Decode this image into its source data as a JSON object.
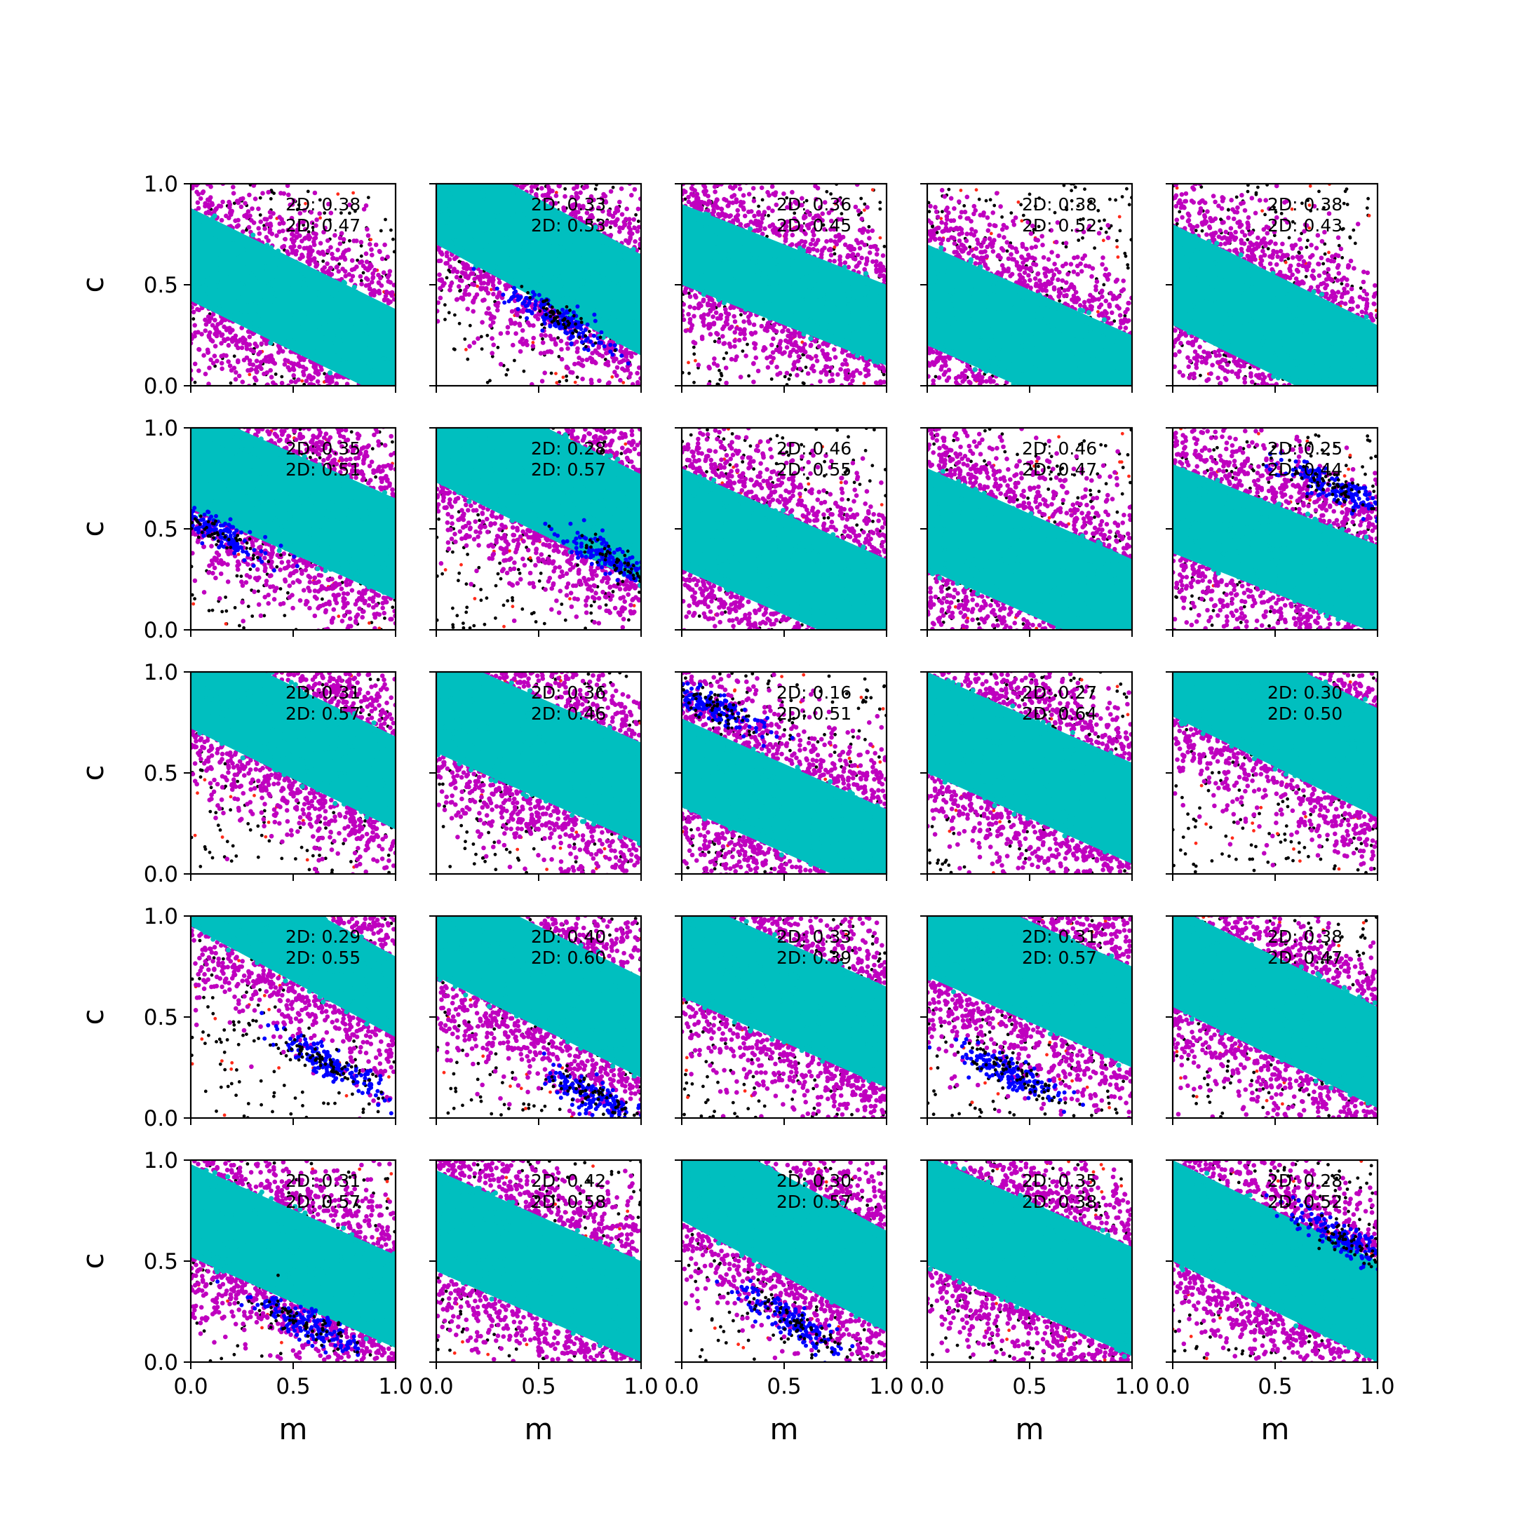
{
  "chart_data": {
    "type": "scatter",
    "layout": {
      "rows": 5,
      "cols": 5
    },
    "xlabel": "m",
    "ylabel": "c",
    "xlim": [
      0.0,
      1.0
    ],
    "ylim": [
      0.0,
      1.0
    ],
    "xticks": [
      "0.0",
      "0.5",
      "1.0"
    ],
    "yticks": [
      "0.0",
      "0.5",
      "1.0"
    ],
    "grid": false,
    "colors": {
      "cyan": "#00bfbf",
      "magenta": "#bf00bf",
      "blue": "#0000ff",
      "black": "#000000",
      "red": "#ff2a1a"
    },
    "panels": [
      {
        "row": 0,
        "col": 0,
        "annotations": [
          "2D: 0.38",
          "2D: 0.47"
        ],
        "band_slope": -0.5,
        "band_intercept": 0.65,
        "band_halfwidth": 0.23,
        "blue_cluster": null
      },
      {
        "row": 0,
        "col": 1,
        "annotations": [
          "2D: 0.33",
          "2D: 0.53"
        ],
        "band_slope": -0.55,
        "band_intercept": 0.95,
        "band_halfwidth": 0.25,
        "blue_cluster": [
          0.6,
          0.33
        ]
      },
      {
        "row": 0,
        "col": 2,
        "annotations": [
          "2D: 0.36",
          "2D: 0.45"
        ],
        "band_slope": -0.4,
        "band_intercept": 0.7,
        "band_halfwidth": 0.2,
        "blue_cluster": null
      },
      {
        "row": 0,
        "col": 3,
        "annotations": [
          "2D: 0.38",
          "2D: 0.52"
        ],
        "band_slope": -0.45,
        "band_intercept": 0.45,
        "band_halfwidth": 0.25,
        "blue_cluster": null
      },
      {
        "row": 0,
        "col": 4,
        "annotations": [
          "2D: 0.38",
          "2D: 0.43"
        ],
        "band_slope": -0.5,
        "band_intercept": 0.55,
        "band_halfwidth": 0.25,
        "blue_cluster": null
      },
      {
        "row": 1,
        "col": 0,
        "annotations": [
          "2D: 0.35",
          "2D: 0.51"
        ],
        "band_slope": -0.45,
        "band_intercept": 0.85,
        "band_halfwidth": 0.25,
        "blue_cluster": [
          0.1,
          0.5
        ]
      },
      {
        "row": 1,
        "col": 1,
        "annotations": [
          "2D: 0.28",
          "2D: 0.57"
        ],
        "band_slope": -0.5,
        "band_intercept": 1.0,
        "band_halfwidth": 0.27,
        "blue_cluster": [
          0.85,
          0.35
        ]
      },
      {
        "row": 1,
        "col": 2,
        "annotations": [
          "2D: 0.46",
          "2D: 0.55"
        ],
        "band_slope": -0.45,
        "band_intercept": 0.55,
        "band_halfwidth": 0.25,
        "blue_cluster": null
      },
      {
        "row": 1,
        "col": 3,
        "annotations": [
          "2D: 0.46",
          "2D: 0.47"
        ],
        "band_slope": -0.45,
        "band_intercept": 0.55,
        "band_halfwidth": 0.25,
        "blue_cluster": null
      },
      {
        "row": 1,
        "col": 4,
        "annotations": [
          "2D: 0.25",
          "2D: 0.44"
        ],
        "band_slope": -0.4,
        "band_intercept": 0.6,
        "band_halfwidth": 0.22,
        "blue_cluster": [
          0.8,
          0.7
        ]
      },
      {
        "row": 2,
        "col": 0,
        "annotations": [
          "2D: 0.31",
          "2D: 0.57"
        ],
        "band_slope": -0.5,
        "band_intercept": 0.95,
        "band_halfwidth": 0.23,
        "blue_cluster": null
      },
      {
        "row": 2,
        "col": 1,
        "annotations": [
          "2D: 0.36",
          "2D: 0.46"
        ],
        "band_slope": -0.45,
        "band_intercept": 0.85,
        "band_halfwidth": 0.25,
        "blue_cluster": null
      },
      {
        "row": 2,
        "col": 2,
        "annotations": [
          "2D: 0.16",
          "2D: 0.51"
        ],
        "band_slope": -0.45,
        "band_intercept": 0.55,
        "band_halfwidth": 0.22,
        "blue_cluster": [
          0.15,
          0.83
        ]
      },
      {
        "row": 2,
        "col": 3,
        "annotations": [
          "2D: 0.27",
          "2D: 0.64"
        ],
        "band_slope": -0.45,
        "band_intercept": 0.75,
        "band_halfwidth": 0.25,
        "blue_cluster": null
      },
      {
        "row": 2,
        "col": 4,
        "annotations": [
          "2D: 0.30",
          "2D: 0.50"
        ],
        "band_slope": -0.5,
        "band_intercept": 1.05,
        "band_halfwidth": 0.27,
        "blue_cluster": null
      },
      {
        "row": 3,
        "col": 0,
        "annotations": [
          "2D: 0.29",
          "2D: 0.55"
        ],
        "band_slope": -0.55,
        "band_intercept": 1.15,
        "band_halfwidth": 0.2,
        "blue_cluster": [
          0.65,
          0.28
        ]
      },
      {
        "row": 3,
        "col": 1,
        "annotations": [
          "2D: 0.40",
          "2D: 0.60"
        ],
        "band_slope": -0.5,
        "band_intercept": 0.95,
        "band_halfwidth": 0.25,
        "blue_cluster": [
          0.78,
          0.1
        ]
      },
      {
        "row": 3,
        "col": 2,
        "annotations": [
          "2D: 0.33",
          "2D: 0.39"
        ],
        "band_slope": -0.45,
        "band_intercept": 0.85,
        "band_halfwidth": 0.25,
        "blue_cluster": null
      },
      {
        "row": 3,
        "col": 3,
        "annotations": [
          "2D: 0.31",
          "2D: 0.57"
        ],
        "band_slope": -0.45,
        "band_intercept": 0.95,
        "band_halfwidth": 0.25,
        "blue_cluster": [
          0.4,
          0.23
        ]
      },
      {
        "row": 3,
        "col": 4,
        "annotations": [
          "2D: 0.38",
          "2D: 0.47"
        ],
        "band_slope": -0.5,
        "band_intercept": 0.8,
        "band_halfwidth": 0.25,
        "blue_cluster": null
      },
      {
        "row": 4,
        "col": 0,
        "annotations": [
          "2D: 0.31",
          "2D: 0.57"
        ],
        "band_slope": -0.45,
        "band_intercept": 0.75,
        "band_halfwidth": 0.23,
        "blue_cluster": [
          0.55,
          0.2
        ]
      },
      {
        "row": 4,
        "col": 1,
        "annotations": [
          "2D: 0.42",
          "2D: 0.58"
        ],
        "band_slope": -0.45,
        "band_intercept": 0.7,
        "band_halfwidth": 0.25,
        "blue_cluster": null
      },
      {
        "row": 4,
        "col": 2,
        "annotations": [
          "2D: 0.30",
          "2D: 0.57"
        ],
        "band_slope": -0.55,
        "band_intercept": 0.95,
        "band_halfwidth": 0.25,
        "blue_cluster": [
          0.55,
          0.2
        ]
      },
      {
        "row": 4,
        "col": 3,
        "annotations": [
          "2D: 0.35",
          "2D: 0.38"
        ],
        "band_slope": -0.45,
        "band_intercept": 0.75,
        "band_halfwidth": 0.27,
        "blue_cluster": null
      },
      {
        "row": 4,
        "col": 4,
        "annotations": [
          "2D: 0.28",
          "2D: 0.52"
        ],
        "band_slope": -0.5,
        "band_intercept": 0.75,
        "band_halfwidth": 0.25,
        "blue_cluster": [
          0.85,
          0.6
        ]
      }
    ]
  }
}
